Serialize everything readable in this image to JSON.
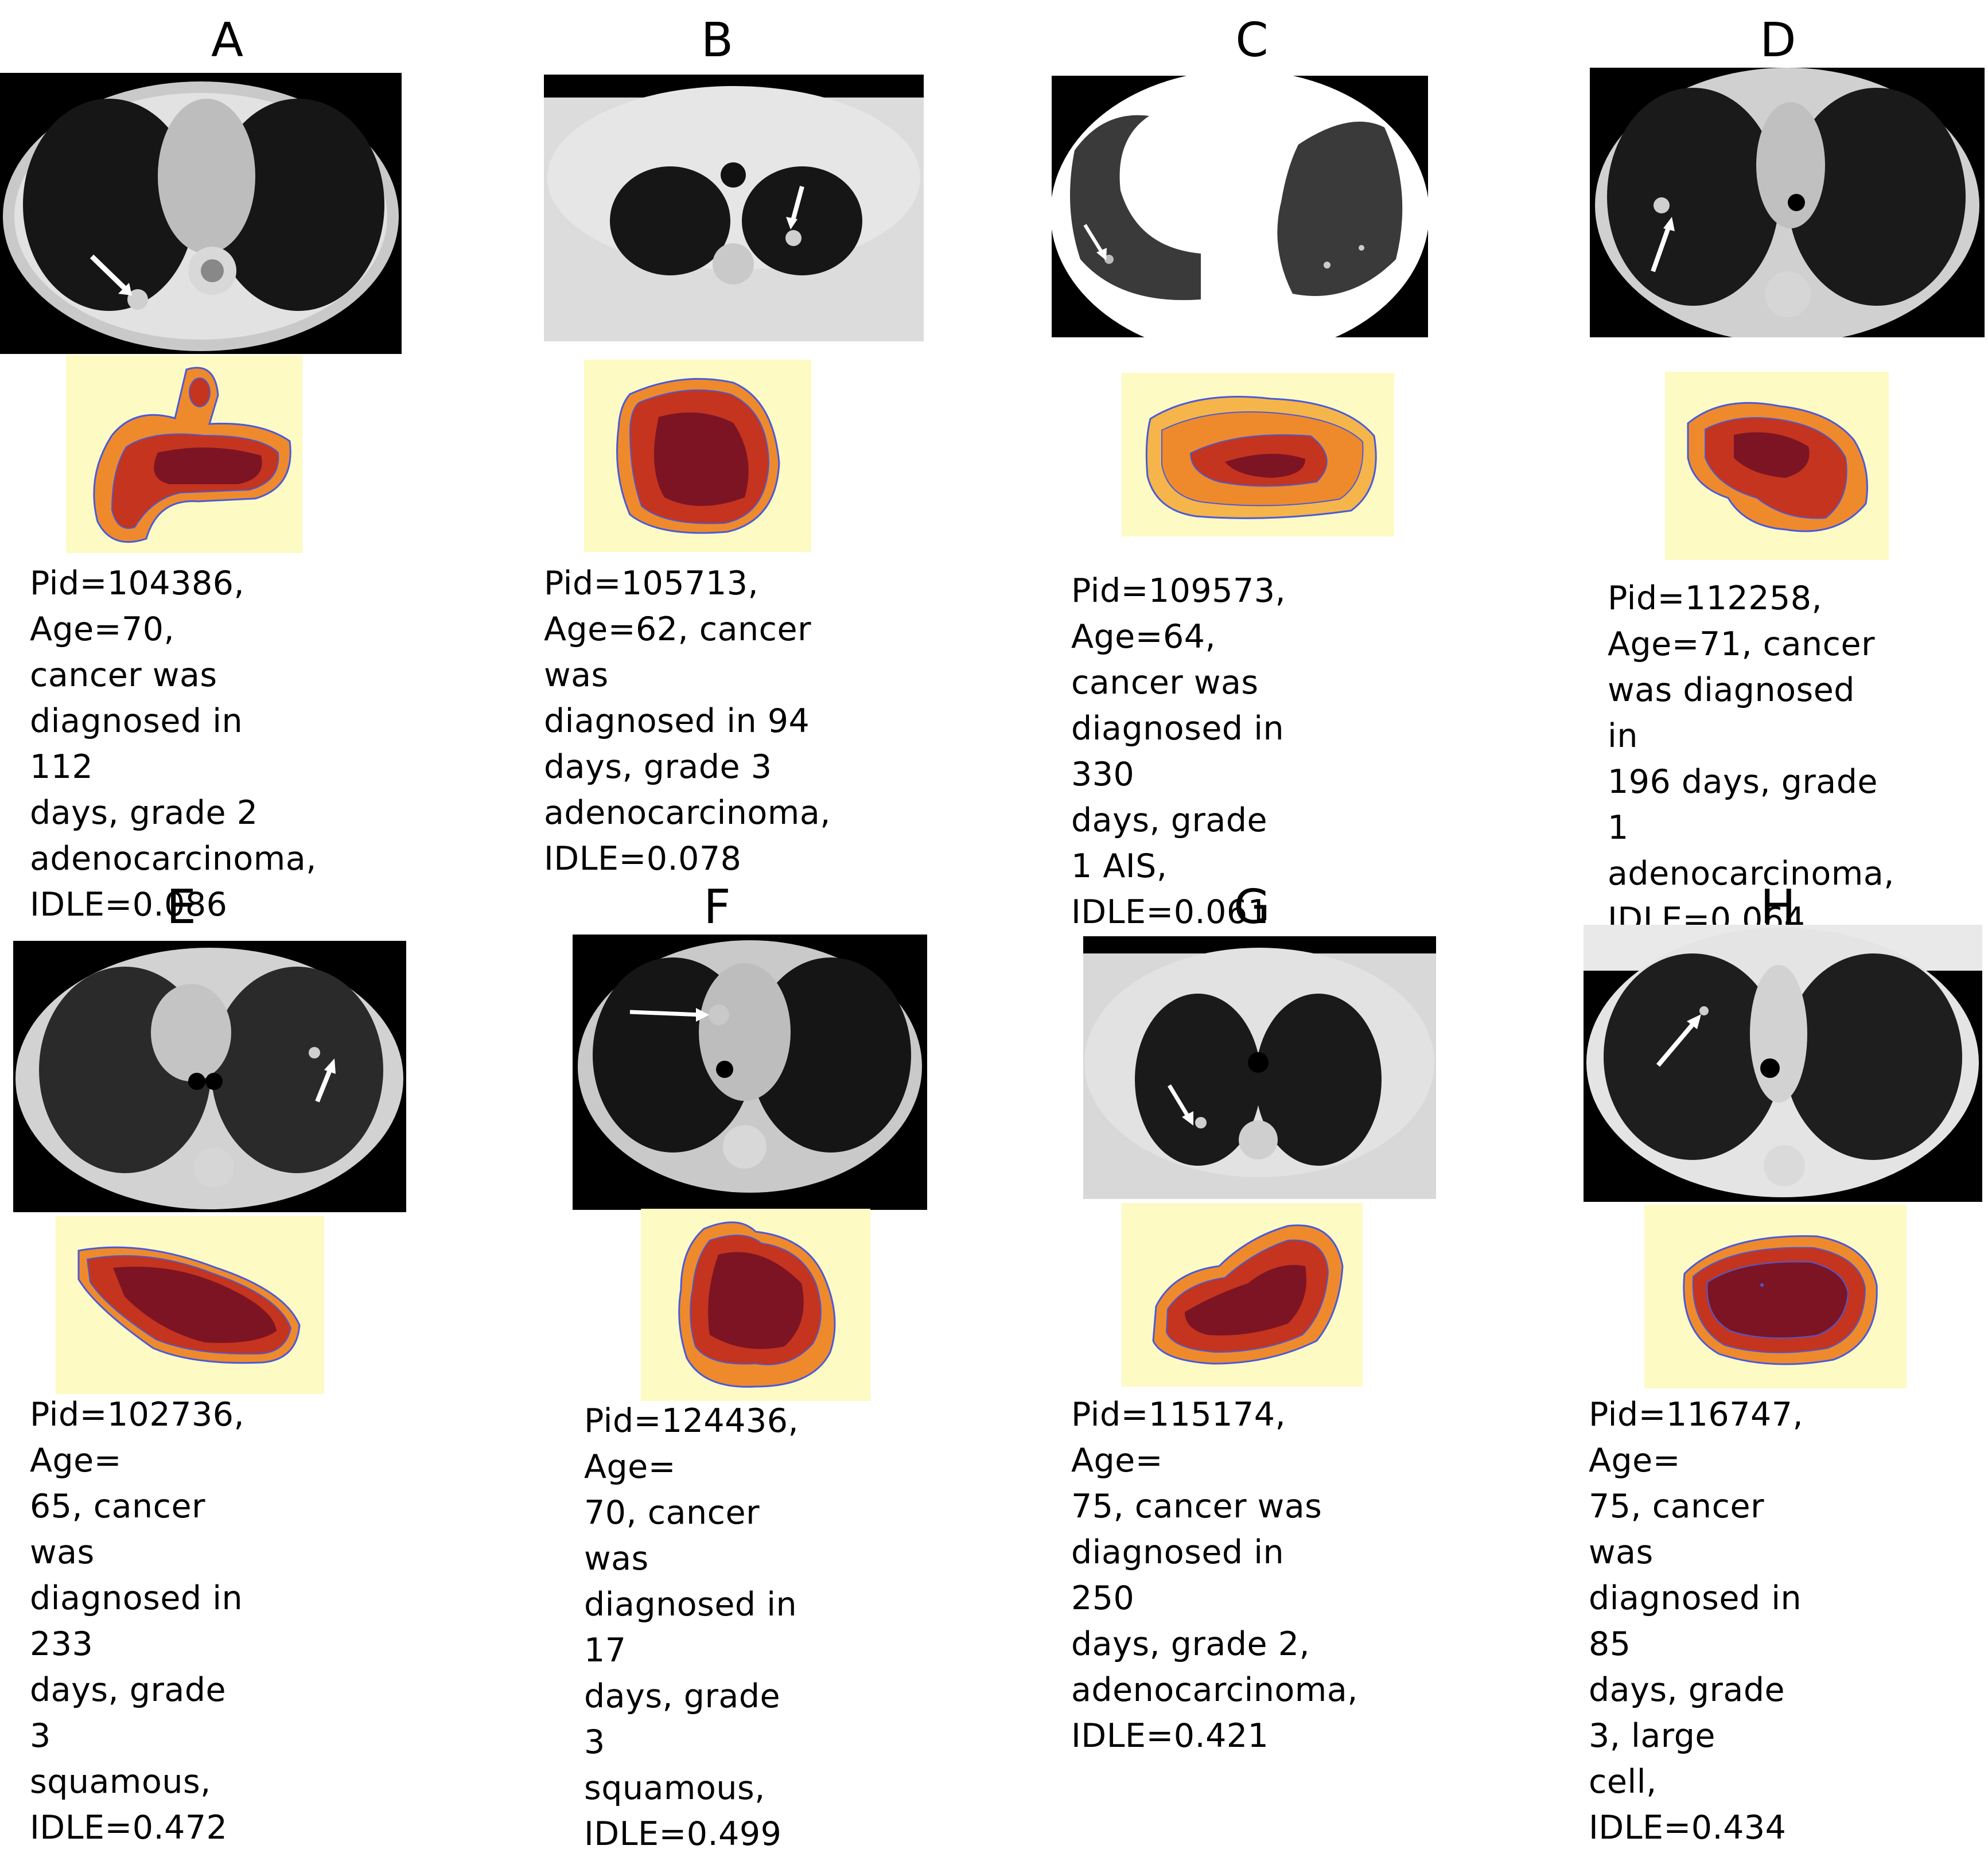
{
  "panels": [
    {
      "letter": "A",
      "caption": "Pid=104386, Age=70,\ncancer was\ndiagnosed in 112\ndays, grade 2\nadenocarcinoma,\nIDLE=0.086"
    },
    {
      "letter": "B",
      "caption": "Pid=105713,\nAge=62, cancer was\ndiagnosed in 94\ndays, grade 3\nadenocarcinoma,\nIDLE=0.078"
    },
    {
      "letter": "C",
      "caption": "Pid=109573,\nAge=64, cancer was\ndiagnosed in 330\ndays, grade 1 AIS,\nIDLE=0.061"
    },
    {
      "letter": "D",
      "caption": "Pid=112258,\nAge=71, cancer\nwas diagnosed in\n196 days, grade 1\nadenocarcinoma,\nIDLE=0.064"
    },
    {
      "letter": "E",
      "caption": "Pid=102736, Age=\n65, cancer was\ndiagnosed in 233\ndays, grade 3\nsquamous,\nIDLE=0.472"
    },
    {
      "letter": "F",
      "caption": "Pid=124436, Age=\n70, cancer was\ndiagnosed in 17\ndays, grade 3\nsquamous,\nIDLE=0.499"
    },
    {
      "letter": "G",
      "caption": "Pid=115174, Age=\n75, cancer was\ndiagnosed in 250\ndays, grade 2,\nadenocarcinoma,\nIDLE=0.421"
    },
    {
      "letter": "H",
      "caption": "Pid=116747, Age=\n75, cancer was\ndiagnosed in 85\ndays, grade 3, large\ncell, IDLE=0.434"
    }
  ],
  "colors": {
    "heatmap_background": "#fdfac4",
    "contour": "#4a5ad8",
    "core": "#7d1424",
    "mid": "#c4341e",
    "outer": "#ef8a2c"
  }
}
